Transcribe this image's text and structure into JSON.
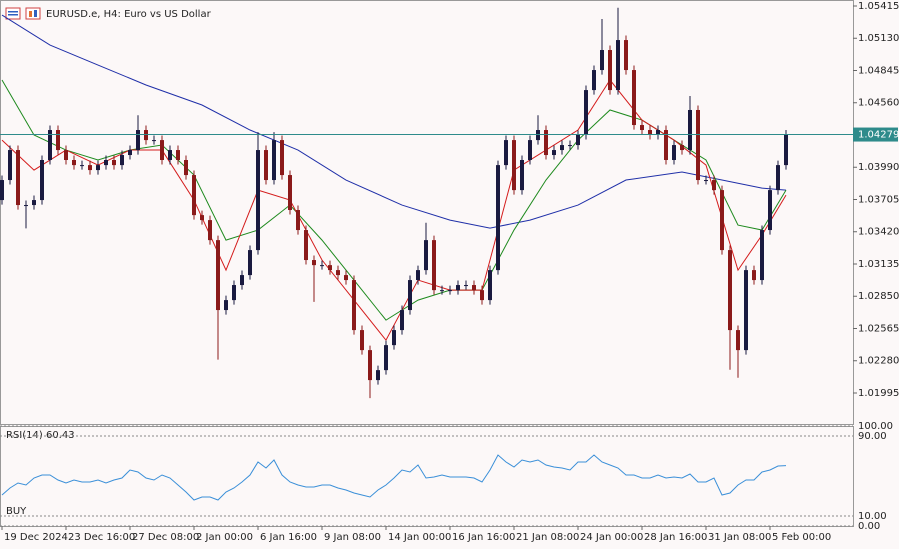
{
  "chart_data": [
    {
      "type": "candlestick",
      "title": "EURUSD.e, H4:  Euro vs US Dollar",
      "up_color": "#1a1a40",
      "down_color": "#8b1a1a",
      "open": [
        1.037,
        1.03877,
        1.04142,
        1.03656,
        1.03656,
        1.037,
        1.04054,
        1.04319,
        1.04142,
        1.04054,
        1.04009,
        1.04009,
        1.03965,
        1.04009,
        1.04054,
        1.04009,
        1.04098,
        1.04142,
        1.04319,
        1.0423,
        1.0423,
        1.04054,
        1.04142,
        1.04054,
        1.03921,
        1.03567,
        1.03523,
        1.03346,
        1.02728,
        1.02816,
        1.02949,
        1.03037,
        1.03258,
        1.04142,
        1.03877,
        1.0423,
        1.03921,
        1.03612,
        1.03435,
        1.0317,
        1.03125,
        1.03125,
        1.03081,
        1.03037,
        1.02993,
        1.02551,
        1.02374,
        1.02109,
        1.02197,
        1.02418,
        1.02551,
        1.02728,
        1.02993,
        1.03081,
        1.03346,
        1.02904,
        1.02904,
        1.02904,
        1.02949,
        1.02949,
        1.02904,
        1.02816,
        1.03081,
        1.04009,
        1.0423,
        1.03788,
        1.04054,
        1.0423,
        1.04319,
        1.04098,
        1.04142,
        1.04186,
        1.04186,
        1.04275,
        1.04672,
        1.04849,
        1.05026,
        1.04672,
        1.05114,
        1.04849,
        1.04363,
        1.04319,
        1.04275,
        1.04319,
        1.04054,
        1.04186,
        1.04142,
        1.04496,
        1.03877,
        1.03877,
        1.03788,
        1.03258,
        1.02551,
        1.02374,
        1.03081,
        1.02993,
        1.03435,
        1.03788,
        1.04009
      ],
      "high": [
        1.03917,
        1.04182,
        1.04182,
        1.03696,
        1.0374,
        1.04094,
        1.04359,
        1.04359,
        1.04182,
        1.04094,
        1.04049,
        1.04049,
        1.04049,
        1.04094,
        1.04094,
        1.04138,
        1.04182,
        1.0445,
        1.04359,
        1.0427,
        1.0427,
        1.04182,
        1.04182,
        1.04094,
        1.03961,
        1.03607,
        1.03563,
        1.03386,
        1.02856,
        1.02989,
        1.03077,
        1.03298,
        1.043,
        1.04182,
        1.043,
        1.0427,
        1.03961,
        1.03652,
        1.03475,
        1.0321,
        1.03165,
        1.03165,
        1.03121,
        1.03077,
        1.03033,
        1.02591,
        1.02414,
        1.02237,
        1.02458,
        1.02591,
        1.02768,
        1.03033,
        1.03121,
        1.035,
        1.03386,
        1.02944,
        1.02944,
        1.02989,
        1.02989,
        1.02989,
        1.02944,
        1.03121,
        1.04049,
        1.0427,
        1.0427,
        1.04094,
        1.0427,
        1.0445,
        1.04359,
        1.04182,
        1.04226,
        1.04226,
        1.04315,
        1.04712,
        1.04889,
        1.053,
        1.05066,
        1.054,
        1.05154,
        1.04889,
        1.04403,
        1.04359,
        1.04359,
        1.04359,
        1.04226,
        1.04226,
        1.0462,
        1.04536,
        1.03917,
        1.03917,
        1.03828,
        1.03298,
        1.02591,
        1.03121,
        1.03121,
        1.03475,
        1.03828,
        1.04049,
        1.04319
      ],
      "low": [
        1.0366,
        1.03837,
        1.03616,
        1.0345,
        1.03616,
        1.0366,
        1.04014,
        1.04102,
        1.04014,
        1.03969,
        1.03969,
        1.03925,
        1.03925,
        1.03969,
        1.03969,
        1.03969,
        1.04058,
        1.04102,
        1.0419,
        1.0419,
        1.04014,
        1.04014,
        1.04014,
        1.03881,
        1.03527,
        1.03483,
        1.03306,
        1.0229,
        1.02688,
        1.02776,
        1.02909,
        1.02997,
        1.03218,
        1.03837,
        1.03837,
        1.03881,
        1.03572,
        1.03395,
        1.0313,
        1.028,
        1.03085,
        1.03041,
        1.02997,
        1.02953,
        1.02511,
        1.02334,
        1.0195,
        1.02069,
        1.02157,
        1.02378,
        1.02511,
        1.02688,
        1.02953,
        1.03041,
        1.02864,
        1.02864,
        1.02864,
        1.02864,
        1.02909,
        1.02864,
        1.02776,
        1.02776,
        1.03041,
        1.03969,
        1.03748,
        1.03748,
        1.04014,
        1.0419,
        1.04058,
        1.04058,
        1.04102,
        1.04146,
        1.04146,
        1.04235,
        1.04632,
        1.04809,
        1.04632,
        1.04632,
        1.04809,
        1.04323,
        1.04279,
        1.04235,
        1.04235,
        1.04014,
        1.04014,
        1.04102,
        1.04102,
        1.03837,
        1.03837,
        1.03748,
        1.03218,
        1.022,
        1.0213,
        1.02334,
        1.02953,
        1.02953,
        1.03395,
        1.03748,
        1.03969
      ],
      "close": [
        1.03877,
        1.04142,
        1.03656,
        1.03656,
        1.037,
        1.04054,
        1.04319,
        1.04142,
        1.04054,
        1.04009,
        1.04009,
        1.03965,
        1.04009,
        1.04054,
        1.04009,
        1.04098,
        1.04142,
        1.04319,
        1.0423,
        1.0423,
        1.04054,
        1.04142,
        1.04054,
        1.03921,
        1.03567,
        1.03523,
        1.03346,
        1.02728,
        1.02816,
        1.02949,
        1.03037,
        1.03258,
        1.04142,
        1.03877,
        1.0423,
        1.03921,
        1.03612,
        1.03435,
        1.0317,
        1.03125,
        1.03125,
        1.03081,
        1.03037,
        1.02993,
        1.02551,
        1.02374,
        1.02109,
        1.02197,
        1.02418,
        1.02551,
        1.02728,
        1.02993,
        1.03081,
        1.03346,
        1.02904,
        1.02904,
        1.02904,
        1.02949,
        1.02949,
        1.02904,
        1.02816,
        1.03081,
        1.04009,
        1.0423,
        1.03788,
        1.04054,
        1.0423,
        1.04319,
        1.04098,
        1.04142,
        1.04186,
        1.04186,
        1.04275,
        1.04672,
        1.04849,
        1.05026,
        1.04672,
        1.05114,
        1.04849,
        1.04363,
        1.04319,
        1.04275,
        1.04319,
        1.04054,
        1.04186,
        1.04142,
        1.04496,
        1.03877,
        1.03877,
        1.03788,
        1.03258,
        1.02551,
        1.02374,
        1.03081,
        1.02993,
        1.03435,
        1.03788,
        1.04009,
        1.04279
      ],
      "lines": [
        {
          "color": "#1f2fa8",
          "x": [
            0,
            6,
            12,
            18,
            25,
            31,
            37,
            43,
            50,
            56,
            61,
            66,
            72,
            78,
            85,
            90,
            95,
            98
          ],
          "values": [
            1.05335,
            1.0507,
            1.04893,
            1.04717,
            1.0454,
            1.04319,
            1.04142,
            1.03877,
            1.03656,
            1.03523,
            1.03452,
            1.03523,
            1.03656,
            1.03877,
            1.03948,
            1.03877,
            1.03806,
            1.03788
          ]
        },
        {
          "color": "#1e8a1e",
          "x": [
            0,
            4,
            8,
            12,
            16,
            20,
            24,
            28,
            32,
            36,
            40,
            44,
            48,
            52,
            56,
            60,
            64,
            68,
            72,
            76,
            80,
            84,
            88,
            92,
            95,
            98
          ],
          "values": [
            1.04761,
            1.04275,
            1.04142,
            1.04054,
            1.04142,
            1.04186,
            1.03921,
            1.03346,
            1.03435,
            1.03656,
            1.03346,
            1.02993,
            1.02639,
            1.02816,
            1.02904,
            1.02904,
            1.03435,
            1.03877,
            1.0423,
            1.04496,
            1.04407,
            1.0423,
            1.04054,
            1.03479,
            1.03435,
            1.03788
          ]
        },
        {
          "color": "#d41c1c",
          "x": [
            0,
            4,
            8,
            12,
            16,
            20,
            24,
            28,
            32,
            36,
            40,
            44,
            48,
            52,
            56,
            60,
            64,
            68,
            72,
            76,
            80,
            84,
            88,
            92,
            95,
            98
          ],
          "values": [
            1.0423,
            1.03965,
            1.04142,
            1.04009,
            1.04142,
            1.04142,
            1.037,
            1.03081,
            1.03788,
            1.037,
            1.0317,
            1.02816,
            1.02462,
            1.02993,
            1.02904,
            1.02904,
            1.03965,
            1.04142,
            1.04319,
            1.04761,
            1.04407,
            1.0423,
            1.04009,
            1.03081,
            1.03391,
            1.03744
          ]
        }
      ],
      "current_price": 1.04279,
      "current_price_color": "#2e8b8b",
      "ylim": [
        1.01721,
        1.05468
      ],
      "yticks": [
        {
          "value": 1.05415,
          "label": "1.05415"
        },
        {
          "value": 1.0513,
          "label": "1.05130"
        },
        {
          "value": 1.04845,
          "label": "1.04845"
        },
        {
          "value": 1.0456,
          "label": "1.04560"
        },
        {
          "value": 1.0399,
          "label": "1.03990"
        },
        {
          "value": 1.03705,
          "label": "1.03705"
        },
        {
          "value": 1.0342,
          "label": "1.03420"
        },
        {
          "value": 1.03135,
          "label": "1.03135"
        },
        {
          "value": 1.0285,
          "label": "1.02850"
        },
        {
          "value": 1.02565,
          "label": "1.02565"
        },
        {
          "value": 1.0228,
          "label": "1.02280"
        },
        {
          "value": 1.01995,
          "label": "1.01995"
        }
      ],
      "xticks": [
        {
          "value": 0,
          "label": "19 Dec 2024"
        },
        {
          "value": 8,
          "label": "23 Dec 16:00"
        },
        {
          "value": 16,
          "label": "27 Dec 08:00"
        },
        {
          "value": 24,
          "label": "2 Jan 00:00"
        },
        {
          "value": 32,
          "label": "6 Jan 16:00"
        },
        {
          "value": 40,
          "label": "9 Jan 08:00"
        },
        {
          "value": 48,
          "label": "14 Jan 00:00"
        },
        {
          "value": 56,
          "label": "16 Jan 16:00"
        },
        {
          "value": 64,
          "label": "21 Jan 08:00"
        },
        {
          "value": 72,
          "label": "24 Jan 00:00"
        },
        {
          "value": 80,
          "label": "28 Jan 16:00"
        },
        {
          "value": 88,
          "label": "31 Jan 08:00"
        },
        {
          "value": 96,
          "label": "5 Feb 00:00"
        }
      ]
    },
    {
      "type": "line",
      "title": "RSI(14) 60.43",
      "annotation": "BUY",
      "color": "#3a8fd8",
      "values": [
        31,
        38,
        43,
        41,
        48,
        51,
        51,
        46,
        43,
        46,
        44,
        44,
        46,
        43,
        46,
        48,
        56,
        54,
        48,
        46,
        51,
        48,
        41,
        34,
        26,
        29,
        29,
        26,
        34,
        38,
        44,
        51,
        64,
        58,
        66,
        51,
        44,
        41,
        39,
        39,
        41,
        41,
        38,
        36,
        33,
        31,
        29,
        36,
        41,
        48,
        56,
        54,
        61,
        48,
        49,
        51,
        49,
        49,
        49,
        48,
        44,
        56,
        71,
        64,
        59,
        66,
        64,
        66,
        61,
        59,
        58,
        56,
        64,
        64,
        71,
        64,
        61,
        58,
        51,
        51,
        48,
        48,
        51,
        48,
        49,
        48,
        52,
        44,
        44,
        48,
        31,
        33,
        41,
        46,
        46,
        54,
        56,
        60,
        60.43
      ],
      "ylim": [
        0,
        100
      ],
      "yticks": [
        {
          "value": 100,
          "label": "100.00"
        },
        {
          "value": 90,
          "label": "90.00"
        },
        {
          "value": 10,
          "label": "10.00"
        },
        {
          "value": 0,
          "label": "0.00"
        }
      ]
    }
  ]
}
